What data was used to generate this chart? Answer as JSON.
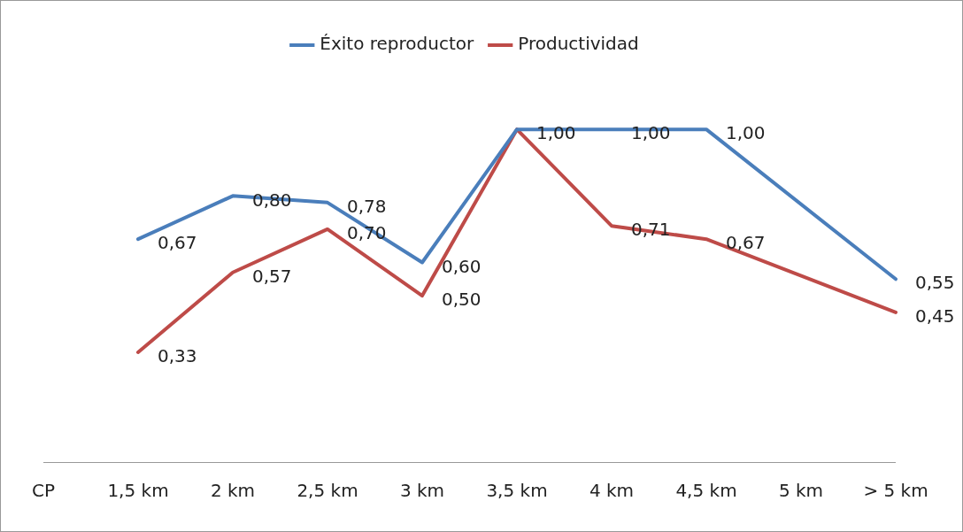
{
  "chart_data": {
    "type": "line",
    "categories": [
      "CP",
      "1,5 km",
      "2 km",
      "2,5 km",
      "3 km",
      "3,5 km",
      "4 km",
      "4,5 km",
      "5 km",
      "> 5 km"
    ],
    "series": [
      {
        "name": "Éxito reproductor",
        "color": "#4a7ebb",
        "values": [
          null,
          0.67,
          0.8,
          0.78,
          0.6,
          1.0,
          1.0,
          1.0,
          null,
          0.55
        ],
        "value_labels": [
          null,
          "0,67",
          "0,80",
          "0,78",
          "0,60",
          "1,00",
          "1,00",
          "1,00",
          null,
          "0,55"
        ]
      },
      {
        "name": "Productividad",
        "color": "#be4b48",
        "values": [
          null,
          0.33,
          0.57,
          0.7,
          0.5,
          1.0,
          0.71,
          0.67,
          null,
          0.45
        ],
        "value_labels": [
          null,
          "0,33",
          "0,57",
          "0,70",
          "0,50",
          null,
          "0,71",
          "0,67",
          null,
          "0,45"
        ]
      }
    ],
    "tick_labels": "x",
    "grid": false,
    "legend": "top",
    "marker": "none",
    "line_style": "solid"
  }
}
